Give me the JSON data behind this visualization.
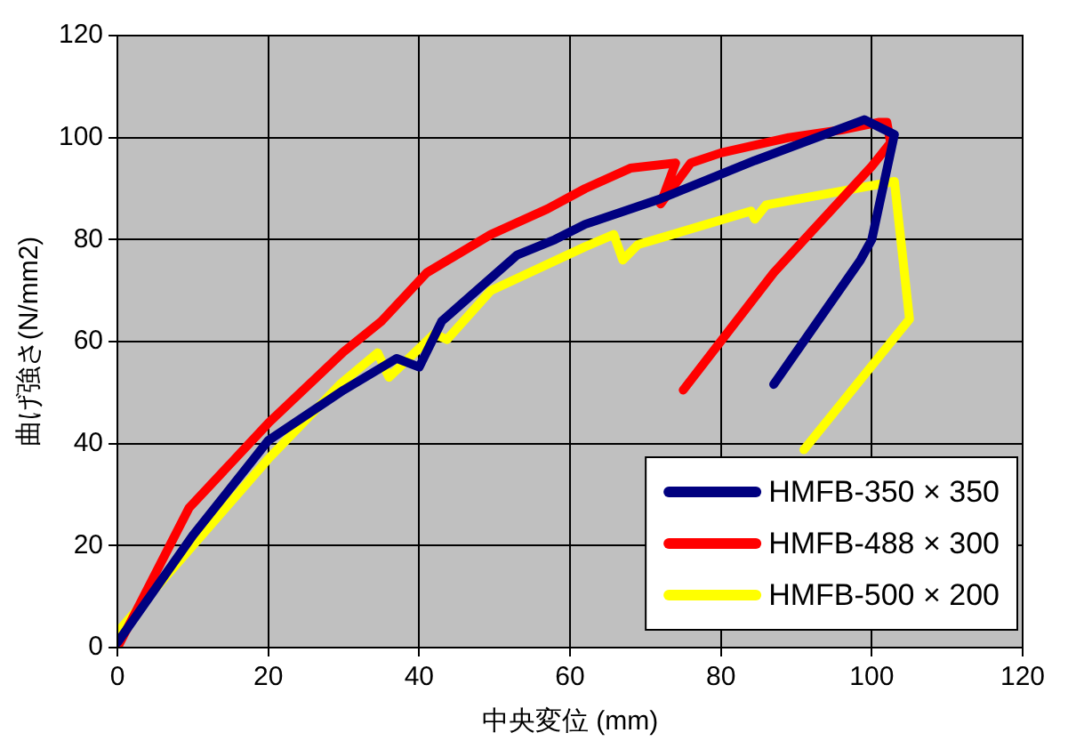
{
  "chart_data": {
    "type": "line",
    "xlabel": "中央変位 (mm)",
    "ylabel": "曲げ強さ(N/mm2)",
    "xlim": [
      0,
      120
    ],
    "ylim": [
      0,
      120
    ],
    "xticks": [
      0,
      20,
      40,
      60,
      80,
      100,
      120
    ],
    "yticks": [
      0,
      20,
      40,
      60,
      80,
      100,
      120
    ],
    "grid": true,
    "legend": "bottom right",
    "marker": "none",
    "line_style": "solid",
    "series": [
      {
        "name": "HMFB-350 × 350",
        "color": "#000080",
        "x": [
          0,
          10,
          20,
          30,
          37,
          40,
          43,
          53,
          58,
          62,
          72,
          84.5,
          99,
          103,
          100,
          98.5,
          87
        ],
        "values": [
          1,
          22,
          40.6,
          50.5,
          56.7,
          55,
          64,
          77,
          80,
          83,
          88,
          95.5,
          103.5,
          100.6,
          80,
          76,
          51.6
        ]
      },
      {
        "name": "HMFB-488 × 300",
        "color": "#ff0000",
        "x": [
          0,
          9.5,
          20,
          30,
          35,
          41,
          49.5,
          57,
          62,
          68,
          74,
          72,
          76,
          80,
          89,
          96,
          101,
          102,
          102.5,
          100,
          87,
          75
        ],
        "values": [
          0,
          27.4,
          44,
          58,
          64,
          73.5,
          81,
          86,
          90,
          94,
          95,
          87,
          95,
          97,
          100,
          101.5,
          103,
          103,
          99,
          94.4,
          73.5,
          50.5
        ]
      },
      {
        "name": "HMFB-500 × 200",
        "color": "#ffff00",
        "x": [
          0,
          10,
          20,
          29.5,
          34.5,
          36,
          42,
          43.7,
          49.5,
          62,
          65.8,
          67,
          69,
          84,
          84.5,
          86,
          103,
          105,
          91
        ],
        "values": [
          3,
          20,
          37,
          51.6,
          57.8,
          53,
          61.5,
          60.4,
          70,
          78.6,
          81,
          76,
          79,
          85.6,
          84,
          86.8,
          91.4,
          64.4,
          38.8
        ]
      }
    ]
  }
}
